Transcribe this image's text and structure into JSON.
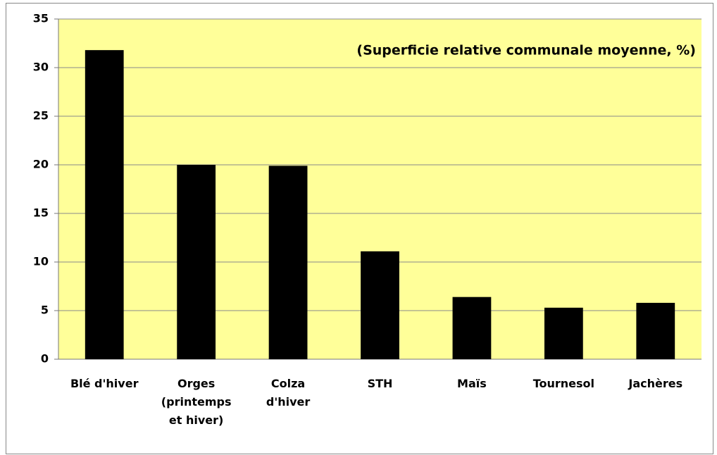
{
  "chart_data": {
    "type": "bar",
    "title": "(Superficie relative communale moyenne, %)",
    "categories": [
      "Blé d'hiver",
      "Orges\n(printemps\net hiver)",
      "Colza\nd'hiver",
      "STH",
      "Maïs",
      "Tournesol",
      "Jachères"
    ],
    "values": [
      31.8,
      20.0,
      19.9,
      11.1,
      6.4,
      5.3,
      5.8
    ],
    "color": "#000000",
    "background": "#ffff99",
    "ylim": [
      0,
      35
    ],
    "yticks": [
      0,
      5,
      10,
      15,
      20,
      25,
      30,
      35
    ],
    "grid": true
  }
}
